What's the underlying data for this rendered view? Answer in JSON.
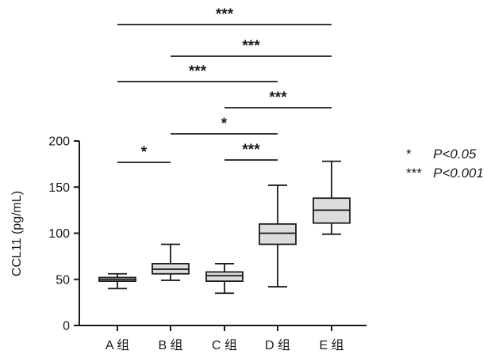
{
  "chart_data": {
    "type": "box",
    "ylabel": "CCL11 (pg/mL)",
    "ylim": [
      0,
      200
    ],
    "yticks": [
      0,
      50,
      100,
      150,
      200
    ],
    "categories": [
      "A 组",
      "B 组",
      "C 组",
      "D 组",
      "E 组"
    ],
    "boxes": [
      {
        "category": "A 组",
        "min": 40,
        "q1": 48,
        "median": 50,
        "q3": 52,
        "max": 56
      },
      {
        "category": "B 组",
        "min": 49,
        "q1": 56,
        "median": 61,
        "q3": 67,
        "max": 88
      },
      {
        "category": "C 组",
        "min": 35,
        "q1": 48,
        "median": 54,
        "q3": 58,
        "max": 67
      },
      {
        "category": "D 组",
        "min": 42,
        "q1": 88,
        "median": 100,
        "q3": 110,
        "max": 152
      },
      {
        "category": "E 组",
        "min": 99,
        "q1": 111,
        "median": 125,
        "q3": 138,
        "max": 178
      }
    ],
    "significance": [
      {
        "from": 0,
        "to": 4,
        "label": "***"
      },
      {
        "from": 1,
        "to": 4,
        "label": "***"
      },
      {
        "from": 0,
        "to": 3,
        "label": "***"
      },
      {
        "from": 2,
        "to": 4,
        "label": "***"
      },
      {
        "from": 1,
        "to": 3,
        "label": "*"
      },
      {
        "from": 0,
        "to": 1,
        "label": "*"
      },
      {
        "from": 2,
        "to": 3,
        "label": "***"
      }
    ],
    "legend": [
      {
        "symbol": "*",
        "text": "P<0.05"
      },
      {
        "symbol": "***",
        "text": "P<0.001"
      }
    ],
    "colors": {
      "box_fill": "#dcdcdc",
      "stroke": "#1a1a1a"
    }
  }
}
